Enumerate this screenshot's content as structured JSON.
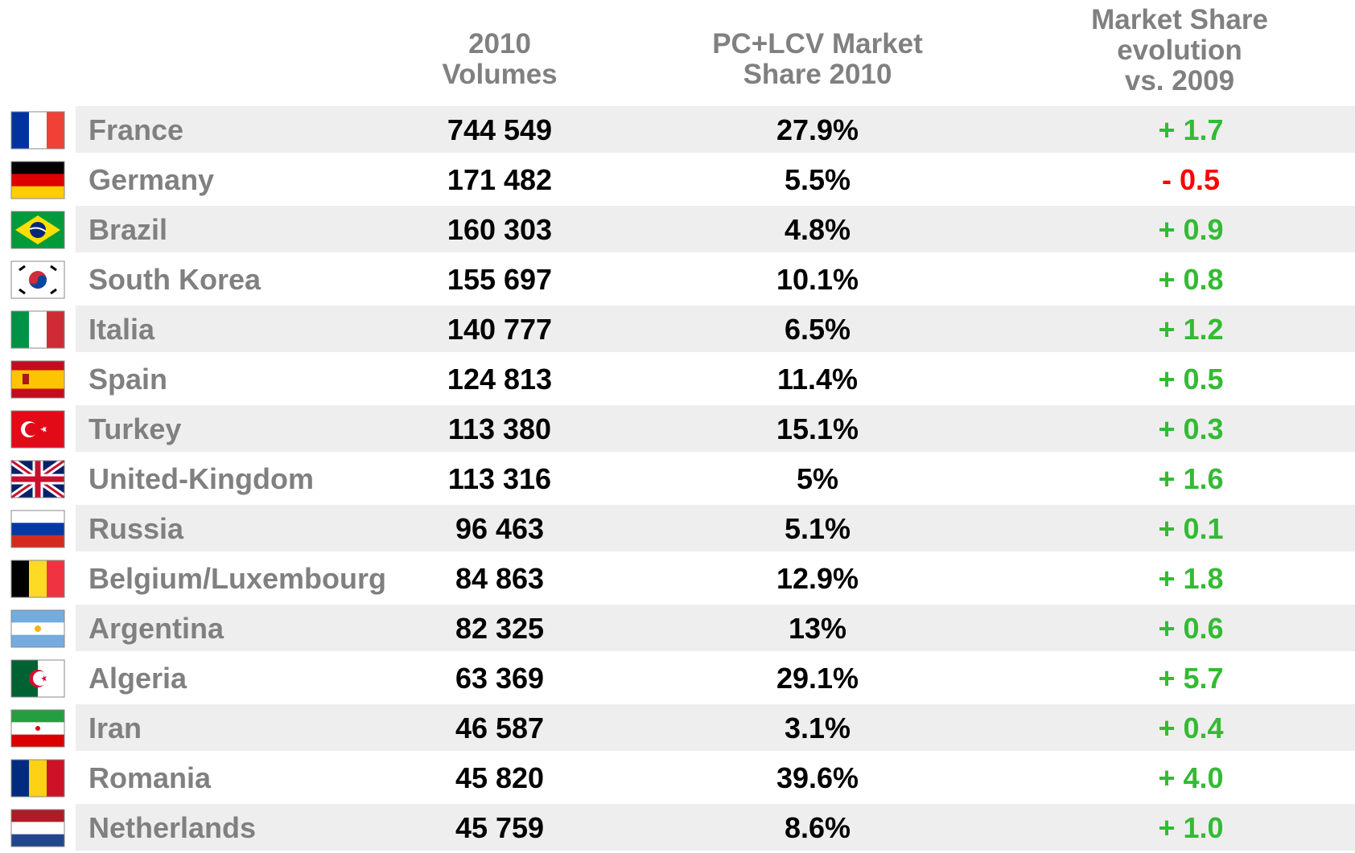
{
  "table": {
    "header": [
      [
        "2010",
        "Volumes"
      ],
      [
        "PC+LCV Market",
        "Share 2010"
      ],
      [
        "Market Share",
        "evolution",
        "vs. 2009"
      ]
    ],
    "rows": [
      [
        "France",
        "744 549",
        "27.9%",
        "+ 1.7"
      ],
      [
        "Germany",
        "171 482",
        "5.5%",
        "- 0.5"
      ],
      [
        "Brazil",
        "160 303",
        "4.8%",
        "+ 0.9"
      ],
      [
        "South Korea",
        "155 697",
        "10.1%",
        "+ 0.8"
      ],
      [
        "Italia",
        "140 777",
        "6.5%",
        "+ 1.2"
      ],
      [
        "Spain",
        "124 813",
        "11.4%",
        "+ 0.5"
      ],
      [
        "Turkey",
        "113 380",
        "15.1%",
        "+ 0.3"
      ],
      [
        "United-Kingdom",
        "113 316",
        "5%",
        "+ 1.6"
      ],
      [
        "Russia",
        "96 463",
        "5.1%",
        "+ 0.1"
      ],
      [
        "Belgium/Luxembourg",
        "84 863",
        "12.9%",
        "+ 1.8"
      ],
      [
        "Argentina",
        "82 325",
        "13%",
        "+ 0.6"
      ],
      [
        "Algeria",
        "63 369",
        "29.1%",
        "+ 5.7"
      ],
      [
        "Iran",
        "46 587",
        "3.1%",
        "+ 0.4"
      ],
      [
        "Romania",
        "45 820",
        "39.6%",
        "+ 4.0"
      ],
      [
        "Netherlands",
        "45 759",
        "8.6%",
        "+ 1.0"
      ]
    ]
  }
}
